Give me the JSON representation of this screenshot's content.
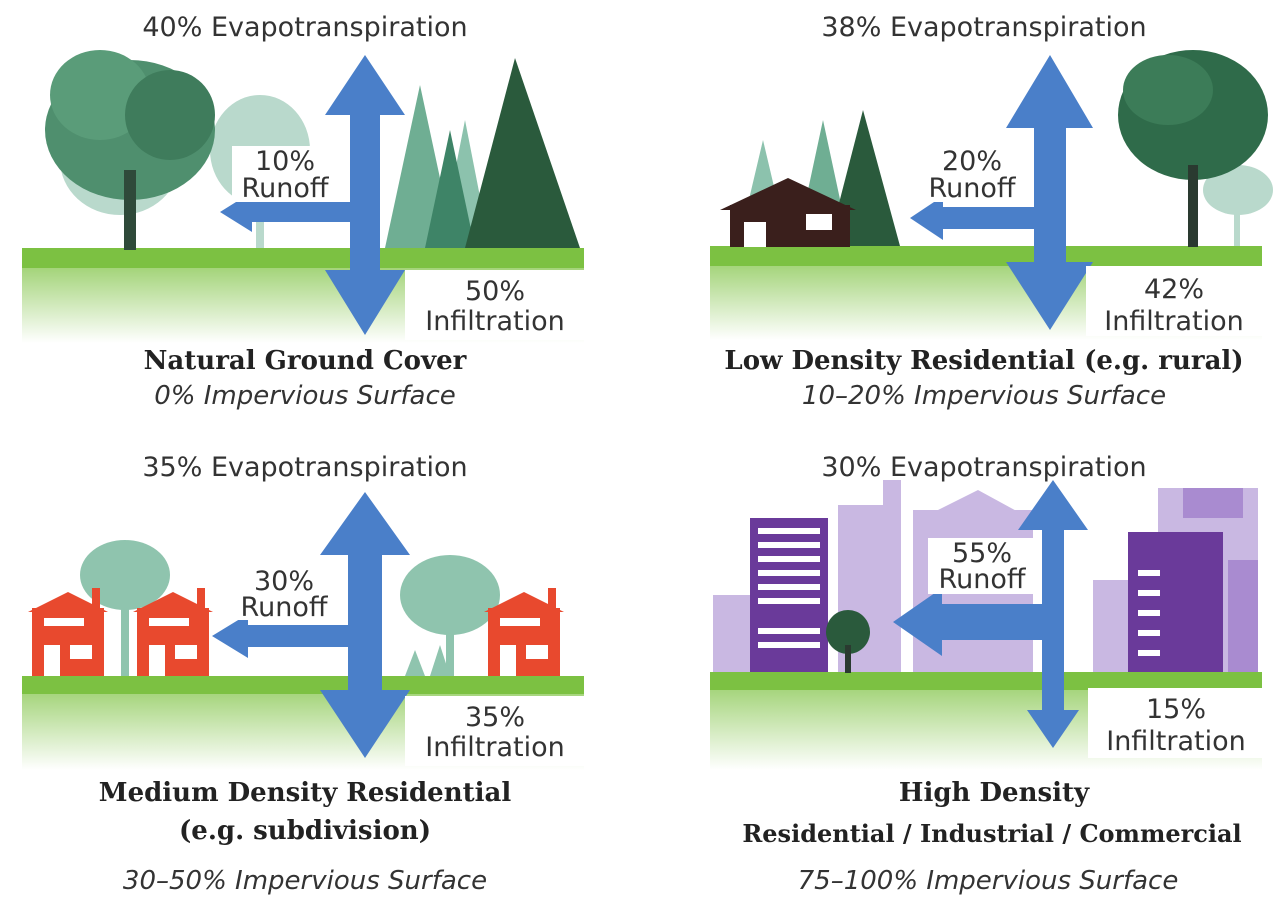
{
  "colors": {
    "arrow": "#4a7fc9",
    "grass": "#7cc142",
    "soil_top": "#9fd06e",
    "tree_dark": "#2a5a3c",
    "tree_mid": "#3f8a6a",
    "tree_light": "#8fc4ae",
    "house_brown": "#3a1f1c",
    "house_red": "#e8492e",
    "building_dark": "#6a3a9a",
    "building_light": "#b8a2d6"
  },
  "panels": [
    {
      "evapotranspiration": "40% Evapotranspiration",
      "runoff_percent": "10%",
      "runoff_label": "Runoff",
      "infiltration_percent": "50%",
      "infiltration_label": "Infiltration",
      "title": "Natural Ground Cover",
      "impervious": "0% Impervious Surface"
    },
    {
      "evapotranspiration": "38% Evapotranspiration",
      "runoff_percent": "20%",
      "runoff_label": "Runoff",
      "infiltration_percent": "42%",
      "infiltration_label": "Infiltration",
      "title": "Low Density Residential (e.g. rural)",
      "impervious": "10–20% Impervious Surface"
    },
    {
      "evapotranspiration": "35% Evapotranspiration",
      "runoff_percent": "30%",
      "runoff_label": "Runoff",
      "infiltration_percent": "35%",
      "infiltration_label": "Infiltration",
      "title_line1": "Medium Density Residential",
      "title_line2": "(e.g. subdivision)",
      "impervious": "30–50% Impervious Surface"
    },
    {
      "evapotranspiration": "30% Evapotranspiration",
      "runoff_percent": "55%",
      "runoff_label": "Runoff",
      "infiltration_percent": "15%",
      "infiltration_label": "Infiltration",
      "title_line1": "High Density",
      "title_line2": "Residential / Industrial / Commercial",
      "impervious": "75–100% Impervious Surface"
    }
  ]
}
